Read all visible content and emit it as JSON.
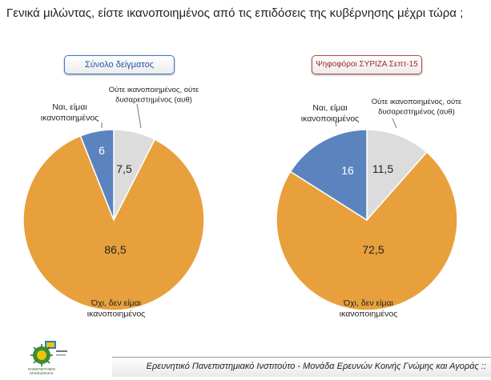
{
  "title": "Γενικά μιλώντας, είστε ικανοποιημένος από τις επιδόσεις της κυβέρνησης μέχρι τώρα ;",
  "footer": "Ερευνητικό Πανεπιστημιακό Ινστιτούτο - Μονάδα Ερευνών Κοινής Γνώμης και Αγοράς ::",
  "logo_text": [
    "ΠΑΝΕΠΙΣΤΗΜΙΟ",
    "ΜΑΚΕΔΟΝΙΑΣ"
  ],
  "colors": {
    "yes": "#5b84bf",
    "neutral": "#dcdcdc",
    "no": "#e8a03c",
    "left_pill_border": "#3f78c4",
    "right_pill_border": "#c14545"
  },
  "chart_data": [
    {
      "type": "pie",
      "title": "Σύνολο δείγματος",
      "labels": [
        "Ναι, είμαι ικανοποιημένος",
        "Ούτε ικανοποιημένος, ούτε δυσαρεστημένος (αυθ)",
        "Όχι, δεν είμαι ικανοποιημένος"
      ],
      "label_lines": [
        [
          "Ναι, είμαι",
          "ικανοποιημένος"
        ],
        [
          "Ούτε ικανοποιημένος, ούτε",
          "δυσαρεστημένος (αυθ)"
        ],
        [
          "Όχι, δεν είμαι",
          "ικανοποιημένος"
        ]
      ],
      "values": [
        6,
        7.5,
        86.5
      ],
      "value_labels": [
        "6",
        "7,5",
        "86,5"
      ]
    },
    {
      "type": "pie",
      "title": "Ψηφοφόροι ΣΥΡΙΖΑ Σεπτ-15",
      "labels": [
        "Ναι, είμαι ικανοποιημένος",
        "Ούτε ικανοποιημένος, ούτε δυσαρεστημένος (αυθ)",
        "Όχι, δεν είμαι ικανοποιημένος"
      ],
      "label_lines": [
        [
          "Ναι, είμαι",
          "ικανοποιημένος"
        ],
        [
          "Ούτε ικανοποιημένος, ούτε",
          "δυσαρεστημένος (αυθ)"
        ],
        [
          "Όχι, δεν είμαι",
          "ικανοποιημένος"
        ]
      ],
      "values": [
        16,
        11.5,
        72.5
      ],
      "value_labels": [
        "16",
        "11,5",
        "72,5"
      ]
    }
  ]
}
